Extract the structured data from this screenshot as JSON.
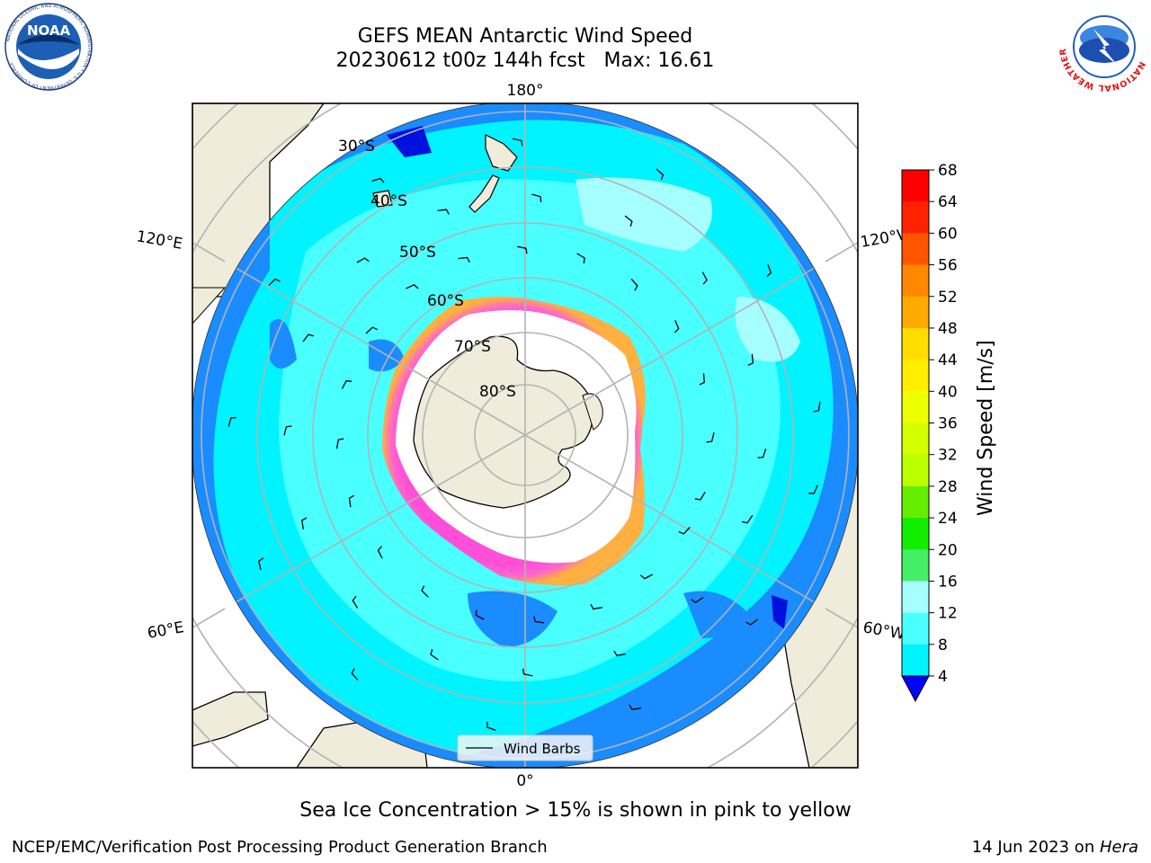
{
  "title": {
    "line1": "GEFS MEAN Antarctic Wind Speed",
    "line2": "20230612 t00z 144h fcst   Max: 16.61"
  },
  "map": {
    "projection": "south-polar-stereographic",
    "lon_labels": {
      "top": "180°",
      "bottom": "0°",
      "upper_left": "120°E",
      "upper_right": "120°W",
      "lower_left": "60°E",
      "lower_right": "60°W"
    },
    "lat_labels": [
      "30°S",
      "40°S",
      "50°S",
      "60°S",
      "70°S",
      "80°S"
    ],
    "legend_label": "Wind Barbs",
    "land_color": "#efecdb",
    "ocean_colors": {
      "4-8": "#1a8cff",
      "8-12": "#00f3ff",
      "12-16": "#4affff",
      "16-20": "#a6ffff"
    }
  },
  "colorbar": {
    "label": "Wind Speed [m/s]",
    "ticks": [
      "68",
      "64",
      "60",
      "56",
      "52",
      "48",
      "44",
      "40",
      "36",
      "32",
      "28",
      "24",
      "20",
      "16",
      "12",
      "8",
      "4"
    ],
    "colors": [
      "#ff0000",
      "#ff2200",
      "#ff5500",
      "#ff8800",
      "#ffaa00",
      "#ffcc00",
      "#ffee00",
      "#eeff00",
      "#d4ff00",
      "#bbff00",
      "#66ee00",
      "#11ee00",
      "#44ee66",
      "#66ffaa",
      "#a6ffff",
      "#4affff",
      "#00f3ff",
      "#1a8cff",
      "#0000ff"
    ]
  },
  "caption": "Sea Ice Concentration > 15% is shown in pink to yellow",
  "footer": {
    "left": "NCEP/EMC/Verification Post Processing Product Generation Branch",
    "right_date": "14 Jun 2023 on ",
    "right_machine": "Hera"
  },
  "logos": {
    "left": "NOAA",
    "left_ring_text": "NATIONAL OCEANIC AND ATMOSPHERIC ADMINISTRATION • U.S. DEPARTMENT OF COMMERCE",
    "right_ring_text": "NATIONAL WEATHER SERVICE"
  }
}
